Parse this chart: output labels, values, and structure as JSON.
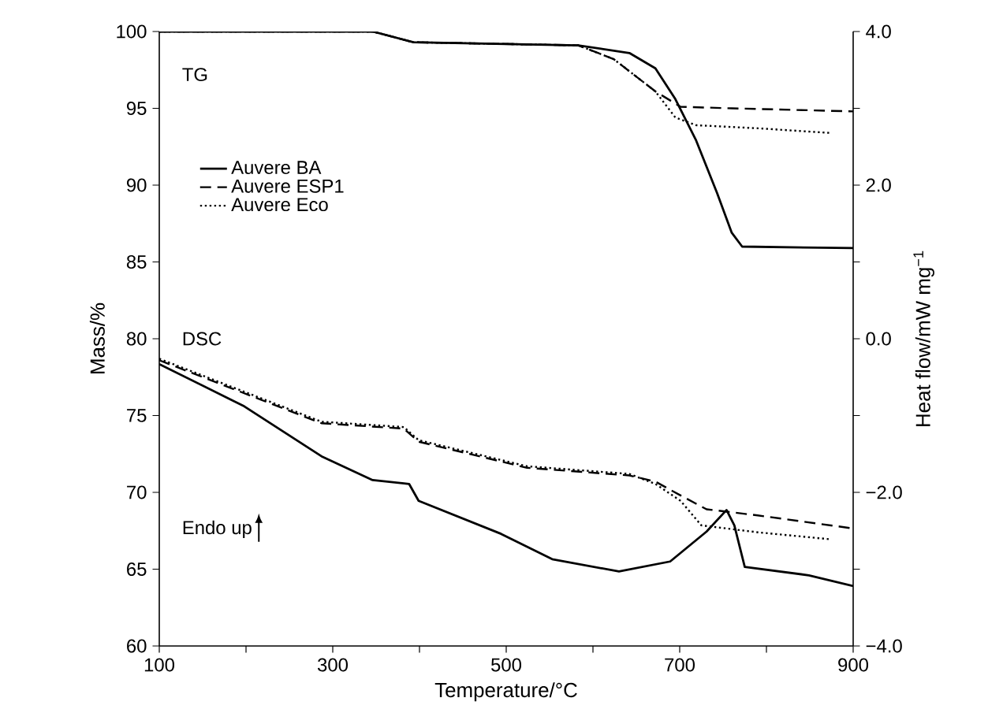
{
  "chart_data": {
    "type": "line",
    "xlabel": "Temperature/°C",
    "ylabel": "Mass/%",
    "y2label": "Heat flow/mW mg$^{−1}$",
    "xlim": [
      100,
      900
    ],
    "xticks": [
      100,
      {
        "value": 200,
        "label": null
      },
      300,
      {
        "value": 400,
        "label": null
      },
      500,
      {
        "value": 600,
        "label": null
      },
      700,
      {
        "value": 800,
        "label": null
      },
      900
    ],
    "ylim": [
      60,
      100
    ],
    "yticks": [
      60,
      65,
      70,
      75,
      80,
      85,
      90,
      95,
      100
    ],
    "y2lim": [
      -4,
      4
    ],
    "y2ticks": [
      {
        "value": -4,
        "label": "−4.0"
      },
      {
        "value": -3,
        "label": null
      },
      {
        "value": -2,
        "label": "−2.0"
      },
      {
        "value": -1,
        "label": null
      },
      {
        "value": 0,
        "label": "0.0"
      },
      {
        "value": 1,
        "label": null
      },
      {
        "value": 2,
        "label": "2.0"
      },
      {
        "value": 3,
        "label": null
      },
      {
        "value": 4,
        "label": "4.0"
      }
    ],
    "grid": false,
    "legend": "top left",
    "marker": "none",
    "annotations": [
      "TG",
      "DSC",
      "Endo up"
    ],
    "series": [
      {
        "name": "Auvere BA",
        "color": "#000000",
        "line_style": "solid",
        "x": [
          100,
          346,
          393,
          583,
          642,
          672,
          695,
          719,
          743,
          760,
          772,
          900
        ],
        "values": [
          100,
          100,
          99.3,
          99.1,
          98.6,
          97.6,
          95.6,
          92.9,
          89.5,
          86.9,
          86.0,
          85.9
        ]
      },
      {
        "name": "Auvere ESP1",
        "color": "#000000",
        "line_style": "dashed",
        "x": [
          100,
          346,
          393,
          583,
          624,
          672,
          701,
          760,
          900
        ],
        "values": [
          100,
          100,
          99.3,
          99.1,
          98.2,
          96.1,
          95.1,
          95.0,
          94.8
        ]
      },
      {
        "name": "Auvere Eco",
        "color": "#000000",
        "line_style": "dotted",
        "x": [
          100,
          346,
          393,
          583,
          624,
          672,
          695,
          719,
          790,
          873
        ],
        "values": [
          100,
          100,
          99.3,
          99.1,
          98.2,
          96.1,
          94.4,
          93.9,
          93.7,
          93.4
        ]
      },
      {
        "color": "#000000",
        "line_style": "solid",
        "axis": "y2",
        "x": [
          100,
          198,
          287,
          346,
          388,
          399,
          494,
          553,
          630,
          689,
          731,
          754,
          763,
          775,
          849,
          900
        ],
        "values": [
          -0.33,
          -0.88,
          -1.53,
          -1.84,
          -1.89,
          -2.11,
          -2.54,
          -2.87,
          -3.03,
          -2.9,
          -2.51,
          -2.23,
          -2.43,
          -2.97,
          -3.08,
          -3.22
        ]
      },
      {
        "color": "#000000",
        "line_style": "dashed",
        "axis": "y2",
        "x": [
          100,
          287,
          382,
          399,
          524,
          642,
          672,
          701,
          731,
          790,
          900
        ],
        "values": [
          -0.28,
          -1.1,
          -1.17,
          -1.34,
          -1.68,
          -1.78,
          -1.86,
          -2.04,
          -2.22,
          -2.3,
          -2.47
        ]
      },
      {
        "color": "#000000",
        "line_style": "dotted",
        "axis": "y2",
        "x": [
          100,
          287,
          382,
          399,
          524,
          642,
          672,
          701,
          725,
          790,
          873
        ],
        "values": [
          -0.26,
          -1.08,
          -1.15,
          -1.32,
          -1.66,
          -1.76,
          -1.89,
          -2.11,
          -2.43,
          -2.52,
          -2.61
        ]
      }
    ]
  }
}
